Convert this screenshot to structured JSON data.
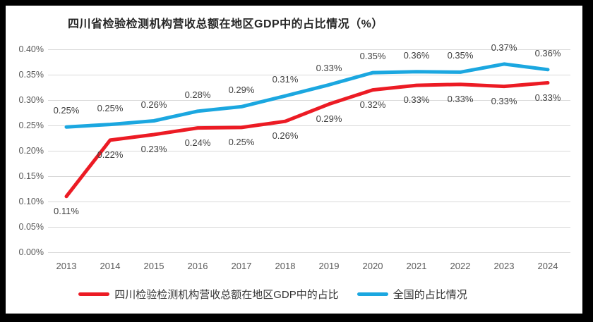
{
  "frame": {
    "border_color": "#000000",
    "background": "#ffffff"
  },
  "chart_data": {
    "type": "line",
    "title": "四川省检验检测机构营收总额在地区GDP中的占比情况（%）",
    "categories": [
      "2013",
      "2014",
      "2015",
      "2016",
      "2017",
      "2018",
      "2019",
      "2020",
      "2021",
      "2022",
      "2023",
      "2024"
    ],
    "series": [
      {
        "name": "四川检验检测机构营收总额在地区GDP中的占比",
        "color": "#ec1b24",
        "labels": [
          "0.11%",
          "0.22%",
          "0.23%",
          "0.24%",
          "0.25%",
          "0.26%",
          "0.29%",
          "0.32%",
          "0.33%",
          "0.33%",
          "0.33%",
          "0.33%"
        ],
        "values": [
          0.11,
          0.22,
          0.23,
          0.24,
          0.25,
          0.26,
          0.29,
          0.32,
          0.33,
          0.33,
          0.33,
          0.33
        ],
        "plot_values": [
          0.11,
          0.221,
          0.232,
          0.245,
          0.246,
          0.258,
          0.292,
          0.32,
          0.329,
          0.331,
          0.327,
          0.334
        ],
        "label_position": "below"
      },
      {
        "name": "全国的占比情况",
        "color": "#1ba7e0",
        "labels": [
          "0.25%",
          "0.25%",
          "0.26%",
          "0.28%",
          "0.29%",
          "0.31%",
          "0.33%",
          "0.35%",
          "0.36%",
          "0.35%",
          "0.37%",
          "0.36%"
        ],
        "values": [
          0.25,
          0.25,
          0.26,
          0.28,
          0.29,
          0.31,
          0.33,
          0.35,
          0.36,
          0.35,
          0.37,
          0.36
        ],
        "plot_values": [
          0.247,
          0.252,
          0.259,
          0.278,
          0.287,
          0.308,
          0.33,
          0.354,
          0.356,
          0.355,
          0.371,
          0.36
        ],
        "label_position": "above"
      }
    ],
    "y_ticks": [
      "0.40%",
      "0.35%",
      "0.30%",
      "0.25%",
      "0.20%",
      "0.15%",
      "0.10%",
      "0.05%",
      "0.00%"
    ],
    "y_axis": {
      "min": 0.0,
      "max": 0.4,
      "step": 0.05,
      "unit": "%"
    },
    "grid": true,
    "legend_position": "bottom",
    "colors": {
      "grid": "#d9d9d9",
      "axis_text": "#595959",
      "data_label_text": "#404040",
      "title_text": "#262626"
    }
  }
}
